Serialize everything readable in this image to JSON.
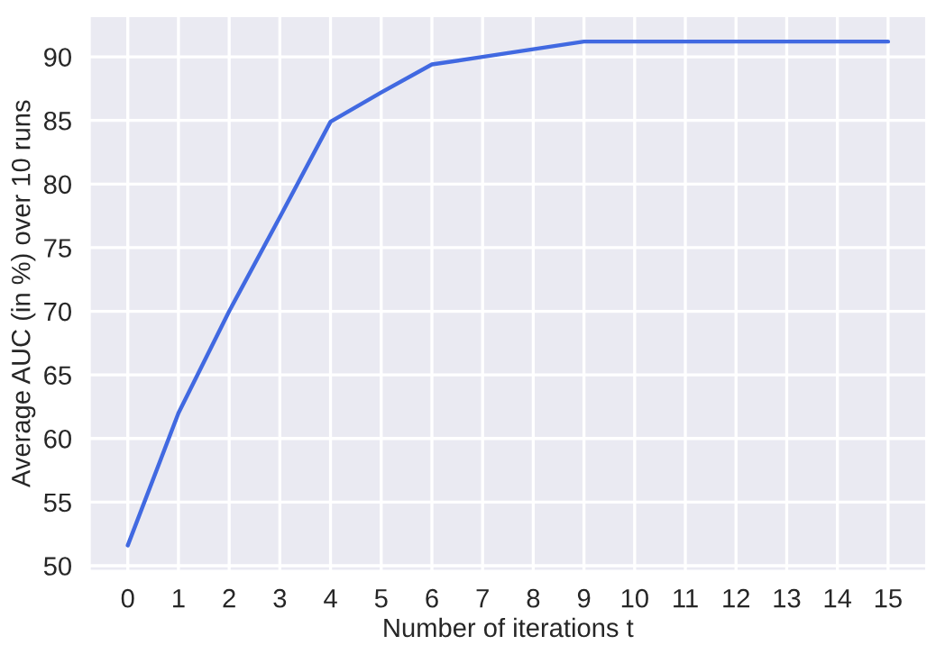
{
  "chart_data": {
    "type": "line",
    "xlabel": "Number of iterations t",
    "ylabel": "Average AUC (in %) over 10 runs",
    "x": [
      0,
      1,
      2,
      3,
      4,
      5,
      6,
      7,
      8,
      9,
      10,
      11,
      12,
      13,
      14,
      15
    ],
    "series": [
      {
        "color": "#4169e1",
        "values": [
          51.6,
          62.0,
          70.0,
          77.4,
          84.9,
          87.2,
          89.4,
          90.0,
          90.6,
          91.2,
          91.2,
          91.2,
          91.2,
          91.2,
          91.2,
          91.2
        ]
      }
    ],
    "xlim": [
      -0.75,
      15.75
    ],
    "ylim": [
      49.6,
      93.2
    ],
    "xticks": [
      0,
      1,
      2,
      3,
      4,
      5,
      6,
      7,
      8,
      9,
      10,
      11,
      12,
      13,
      14,
      15
    ],
    "yticks": [
      50,
      55,
      60,
      65,
      70,
      75,
      80,
      85,
      90
    ],
    "grid": true,
    "legend": false,
    "marker": "none",
    "line_style": "solid"
  }
}
